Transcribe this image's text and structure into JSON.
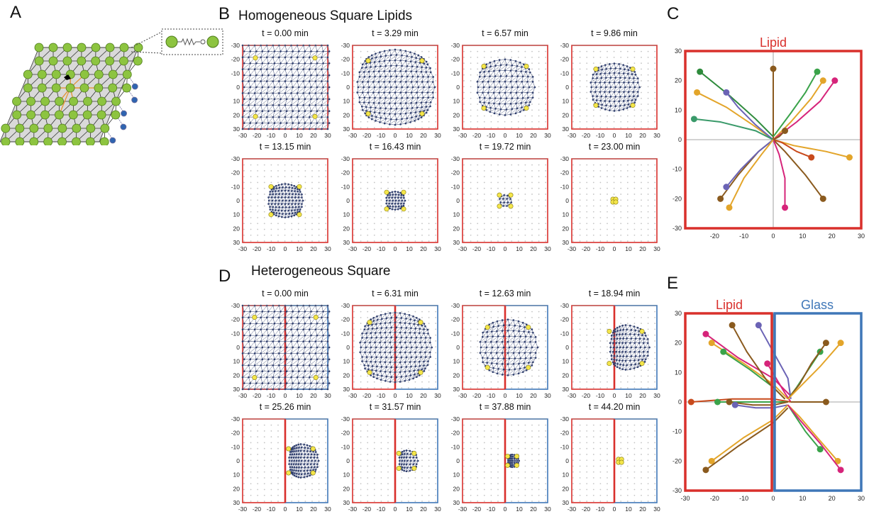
{
  "panels": {
    "A": "A",
    "B": "B",
    "C": "C",
    "D": "D",
    "E": "E"
  },
  "titles": {
    "B": "Homogeneous Square Lipids",
    "D": "Heterogeneous Square"
  },
  "colors": {
    "lipid": "#d9302c",
    "glass": "#3f77b8",
    "node": "#2f3e6d",
    "anchor": "#f4e64a"
  },
  "snapshot_ticks": [
    "-30",
    "-20",
    "-10",
    "0",
    "10",
    "20",
    "30"
  ],
  "homogeneous": {
    "times": [
      "t = 0.00 min",
      "t = 3.29 min",
      "t = 6.57 min",
      "t = 9.86 min",
      "t = 13.15 min",
      "t = 16.43 min",
      "t = 19.72 min",
      "t = 23.00 min"
    ],
    "half_widths": [
      30,
      27,
      20,
      17,
      12,
      6.5,
      4,
      1.2
    ],
    "anchor_r": [
      21,
      19,
      15,
      13,
      10,
      6,
      4,
      1
    ]
  },
  "heterogeneous": {
    "times": [
      "t = 0.00 min",
      "t = 6.31 min",
      "t = 12.63 min",
      "t = 18.94 min",
      "t = 25.26 min",
      "t = 31.57 min",
      "t = 37.88 min",
      "t = 44.20 min"
    ],
    "half_widths": [
      30,
      25,
      20,
      16,
      12,
      7.5,
      4.5,
      1.5
    ],
    "centers": [
      0,
      0,
      2,
      8,
      11,
      8,
      5,
      4
    ]
  },
  "chart_data": [
    {
      "type": "line",
      "panel": "C",
      "title": "Lipid",
      "xlim": [
        -30,
        30
      ],
      "ylim": [
        -30,
        30
      ],
      "x_ticks": [
        "-20",
        "-10",
        "0",
        "10",
        "20",
        "30"
      ],
      "y_ticks": [
        "30",
        "20",
        "10",
        "0",
        "-10",
        "-20",
        "-30"
      ],
      "series": [
        {
          "color": "#2e8b3c",
          "points": [
            [
              -25,
              23
            ],
            [
              -15,
              15
            ],
            [
              -6,
              7
            ],
            [
              0,
              1
            ]
          ]
        },
        {
          "color": "#e3a52a",
          "points": [
            [
              -26,
              16
            ],
            [
              -16,
              11
            ],
            [
              -7,
              5
            ],
            [
              0,
              0
            ]
          ]
        },
        {
          "color": "#6b63b5",
          "points": [
            [
              -16,
              16
            ],
            [
              -12,
              11
            ],
            [
              -6,
              5
            ],
            [
              0,
              0
            ]
          ]
        },
        {
          "color": "#3a9a6a",
          "points": [
            [
              -27,
              7
            ],
            [
              -18,
              6
            ],
            [
              -6,
              3
            ],
            [
              0,
              0
            ]
          ]
        },
        {
          "color": "#8a5a1e",
          "points": [
            [
              0,
              24
            ],
            [
              0,
              14
            ],
            [
              0,
              4
            ],
            [
              0,
              0
            ]
          ]
        },
        {
          "color": "#3aa34a",
          "points": [
            [
              15,
              23
            ],
            [
              11,
              16
            ],
            [
              6,
              9
            ],
            [
              0,
              1
            ]
          ]
        },
        {
          "color": "#e3a52a",
          "points": [
            [
              17,
              20
            ],
            [
              13,
              14
            ],
            [
              6,
              6
            ],
            [
              0,
              0
            ]
          ]
        },
        {
          "color": "#d6247a",
          "points": [
            [
              21,
              20
            ],
            [
              16,
              13
            ],
            [
              8,
              6
            ],
            [
              0,
              0
            ]
          ]
        },
        {
          "color": "#e3a52a",
          "points": [
            [
              26,
              -6
            ],
            [
              18,
              -4
            ],
            [
              7,
              -2
            ],
            [
              0,
              0
            ]
          ]
        },
        {
          "color": "#c84a1c",
          "points": [
            [
              13,
              -6
            ],
            [
              8,
              -4
            ],
            [
              3,
              -1
            ],
            [
              0,
              0
            ]
          ]
        },
        {
          "color": "#8a5a1e",
          "points": [
            [
              17,
              -20
            ],
            [
              11,
              -12
            ],
            [
              4,
              -4
            ],
            [
              0,
              0
            ]
          ]
        },
        {
          "color": "#d6247a",
          "points": [
            [
              4,
              -23
            ],
            [
              4,
              -13
            ],
            [
              2,
              -5
            ],
            [
              0,
              0
            ]
          ]
        },
        {
          "color": "#8a5a1e",
          "points": [
            [
              -18,
              -20
            ],
            [
              -12,
              -12
            ],
            [
              -5,
              -4
            ],
            [
              0,
              0
            ]
          ]
        },
        {
          "color": "#6b63b5",
          "points": [
            [
              -16,
              -16
            ],
            [
              -11,
              -10
            ],
            [
              -5,
              -4
            ],
            [
              0,
              0
            ]
          ]
        },
        {
          "color": "#e3a52a",
          "points": [
            [
              -15,
              -23
            ],
            [
              -10,
              -13
            ],
            [
              -4,
              -5
            ],
            [
              0,
              0
            ]
          ]
        },
        {
          "color": "#8a5a1e",
          "points": [
            [
              4,
              3
            ],
            [
              2,
              1
            ],
            [
              0,
              0
            ]
          ]
        }
      ]
    },
    {
      "type": "line",
      "panel": "E",
      "title": "Lipid",
      "title2": "Glass",
      "xlim": [
        -30,
        30
      ],
      "ylim": [
        -30,
        30
      ],
      "x_ticks": [
        "-30",
        "-20",
        "-10",
        "0",
        "10",
        "20",
        "30"
      ],
      "y_ticks": [
        "30",
        "20",
        "10",
        "0",
        "-10",
        "-20",
        "-30"
      ],
      "series": [
        {
          "color": "#d6247a",
          "points": [
            [
              -23,
              23
            ],
            [
              -12,
              15
            ],
            [
              0,
              8
            ],
            [
              6,
              2
            ]
          ]
        },
        {
          "color": "#e3a52a",
          "points": [
            [
              -21,
              20
            ],
            [
              -10,
              13
            ],
            [
              0,
              6
            ],
            [
              5,
              1
            ]
          ]
        },
        {
          "color": "#3aa34a",
          "points": [
            [
              -17,
              17
            ],
            [
              -8,
              11
            ],
            [
              0,
              5
            ],
            [
              4,
              1
            ]
          ]
        },
        {
          "color": "#8a5a1e",
          "points": [
            [
              -14,
              26
            ],
            [
              -9,
              17
            ],
            [
              -2,
              7
            ],
            [
              4,
              1
            ]
          ]
        },
        {
          "color": "#6b63b5",
          "points": [
            [
              -5,
              26
            ],
            [
              0,
              17
            ],
            [
              5,
              8
            ],
            [
              6,
              1
            ]
          ]
        },
        {
          "color": "#d6247a",
          "points": [
            [
              -2,
              13
            ],
            [
              1,
              8
            ],
            [
              4,
              3
            ],
            [
              6,
              0
            ]
          ]
        },
        {
          "color": "#c84a1c",
          "points": [
            [
              -28,
              0
            ],
            [
              -14,
              1
            ],
            [
              0,
              1
            ],
            [
              6,
              0
            ]
          ]
        },
        {
          "color": "#3aa34a",
          "points": [
            [
              -19,
              0
            ],
            [
              -10,
              0
            ],
            [
              0,
              0
            ],
            [
              5,
              0
            ]
          ]
        },
        {
          "color": "#8a5a1e",
          "points": [
            [
              -15,
              0
            ],
            [
              -7,
              -1
            ],
            [
              0,
              -1
            ],
            [
              5,
              0
            ]
          ]
        },
        {
          "color": "#6b63b5",
          "points": [
            [
              -13,
              -1
            ],
            [
              -6,
              -2
            ],
            [
              0,
              -2
            ],
            [
              5,
              -1
            ]
          ]
        },
        {
          "color": "#e3a52a",
          "points": [
            [
              -21,
              -20
            ],
            [
              -10,
              -12
            ],
            [
              0,
              -6
            ],
            [
              5,
              -1
            ]
          ]
        },
        {
          "color": "#8a5a1e",
          "points": [
            [
              -23,
              -23
            ],
            [
              -12,
              -15
            ],
            [
              0,
              -7
            ],
            [
              5,
              -2
            ]
          ]
        },
        {
          "color": "#3aa34a",
          "points": [
            [
              16,
              17
            ],
            [
              12,
              11
            ],
            [
              8,
              5
            ],
            [
              5,
              1
            ]
          ]
        },
        {
          "color": "#8a5a1e",
          "points": [
            [
              18,
              20
            ],
            [
              13,
              13
            ],
            [
              9,
              6
            ],
            [
              5,
              1
            ]
          ]
        },
        {
          "color": "#e3a52a",
          "points": [
            [
              23,
              20
            ],
            [
              16,
              12
            ],
            [
              9,
              5
            ],
            [
              5,
              1
            ]
          ]
        },
        {
          "color": "#8a5a1e",
          "points": [
            [
              18,
              0
            ],
            [
              12,
              0
            ],
            [
              6,
              0
            ]
          ]
        },
        {
          "color": "#3aa34a",
          "points": [
            [
              16,
              -16
            ],
            [
              11,
              -10
            ],
            [
              7,
              -4
            ],
            [
              5,
              -1
            ]
          ]
        },
        {
          "color": "#e3a52a",
          "points": [
            [
              22,
              -20
            ],
            [
              15,
              -12
            ],
            [
              9,
              -5
            ],
            [
              5,
              -1
            ]
          ]
        },
        {
          "color": "#d6247a",
          "points": [
            [
              23,
              -23
            ],
            [
              16,
              -14
            ],
            [
              9,
              -6
            ],
            [
              5,
              -1
            ]
          ]
        }
      ]
    }
  ]
}
